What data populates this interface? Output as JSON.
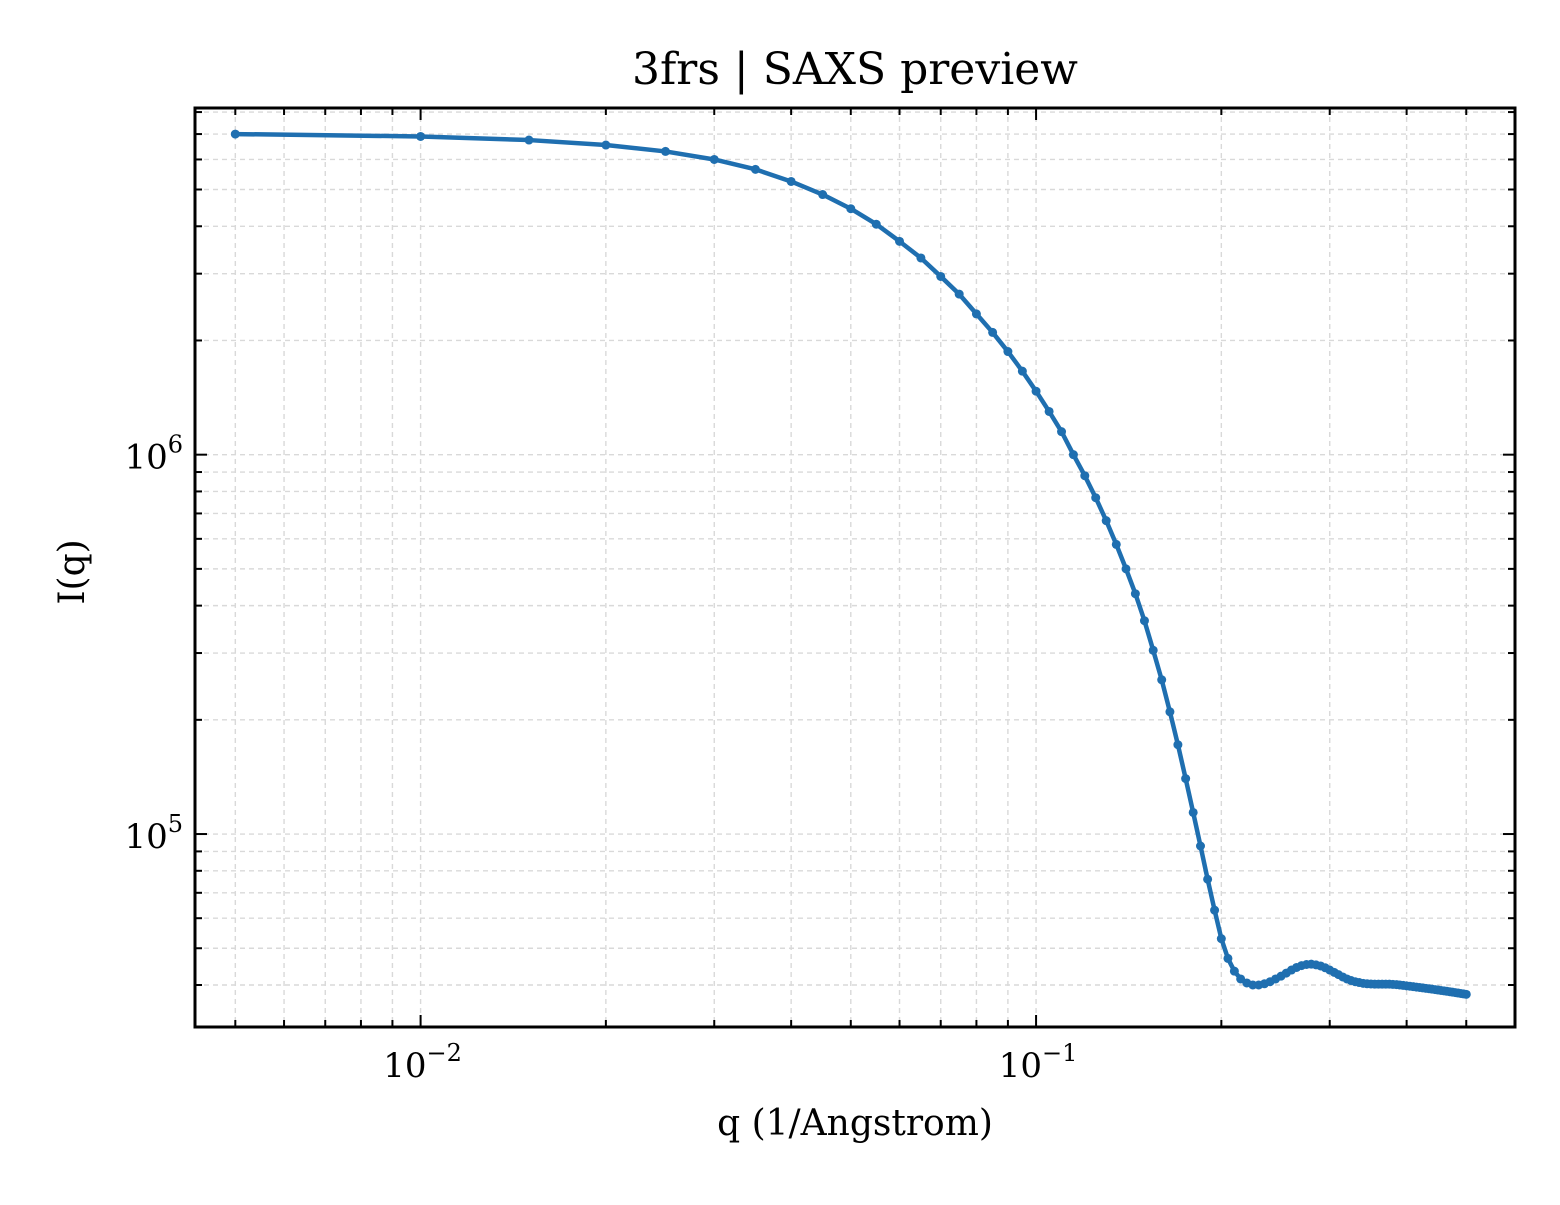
{
  "chart_data": {
    "type": "line",
    "title": "3frs | SAXS preview",
    "xlabel": "q (1/Angstrom)",
    "ylabel": "I(q)",
    "x_scale": "log",
    "y_scale": "log",
    "xlim": [
      0.0043,
      0.6
    ],
    "ylim": [
      31000,
      8200000
    ],
    "grid": true,
    "x_ticks": [
      {
        "base": "10",
        "exp": "−2",
        "value": 0.01
      },
      {
        "base": "10",
        "exp": "−1",
        "value": 0.1
      }
    ],
    "y_ticks": [
      {
        "base": "10",
        "exp": "5",
        "value": 100000
      },
      {
        "base": "10",
        "exp": "6",
        "value": 1000000
      }
    ],
    "colors": {
      "line": "#1f6fb0",
      "grid": "#d9d9d9",
      "axes": "#000000"
    },
    "series": [
      {
        "x": [
          0.005,
          0.01,
          0.015,
          0.02,
          0.025,
          0.03,
          0.035,
          0.04,
          0.045,
          0.05,
          0.055,
          0.06,
          0.065,
          0.07,
          0.075,
          0.08,
          0.085,
          0.09,
          0.095,
          0.1,
          0.105,
          0.11,
          0.115,
          0.12,
          0.125,
          0.13,
          0.135,
          0.14,
          0.145,
          0.15,
          0.155,
          0.16,
          0.165,
          0.17,
          0.175,
          0.18,
          0.185,
          0.19,
          0.195,
          0.2,
          0.205,
          0.21,
          0.215,
          0.22,
          0.225,
          0.23,
          0.235,
          0.24,
          0.245,
          0.25,
          0.255,
          0.26,
          0.265,
          0.27,
          0.275,
          0.28,
          0.285,
          0.29,
          0.295,
          0.3,
          0.305,
          0.31,
          0.315,
          0.32,
          0.325,
          0.33,
          0.335,
          0.34,
          0.345,
          0.35,
          0.355,
          0.36,
          0.365,
          0.37,
          0.375,
          0.38,
          0.385,
          0.39,
          0.395,
          0.4,
          0.405,
          0.41,
          0.415,
          0.42,
          0.425,
          0.43,
          0.435,
          0.44,
          0.445,
          0.45,
          0.455,
          0.46,
          0.465,
          0.47,
          0.475,
          0.48,
          0.485,
          0.49,
          0.495,
          0.5
        ],
        "y": [
          7000000,
          6900000,
          6750000,
          6550000,
          6300000,
          6000000,
          5650000,
          5250000,
          4850000,
          4450000,
          4050000,
          3650000,
          3300000,
          2950000,
          2650000,
          2350000,
          2100000,
          1870000,
          1660000,
          1470000,
          1300000,
          1150000,
          1000000,
          880000,
          770000,
          670000,
          580000,
          500000,
          430000,
          365000,
          305000,
          255000,
          210000,
          172000,
          140000,
          114000,
          93000,
          76000,
          63000,
          53000,
          47000,
          43500,
          41500,
          40500,
          40000,
          40000,
          40300,
          40800,
          41500,
          42200,
          43000,
          43800,
          44500,
          45000,
          45300,
          45400,
          45200,
          44900,
          44400,
          43800,
          43200,
          42600,
          42000,
          41500,
          41100,
          40800,
          40600,
          40400,
          40300,
          40250,
          40200,
          40200,
          40200,
          40200,
          40200,
          40150,
          40100,
          40000,
          39900,
          39800,
          39700,
          39600,
          39500,
          39400,
          39300,
          39200,
          39100,
          39000,
          38900,
          38800,
          38700,
          38600,
          38500,
          38400,
          38300,
          38200,
          38100,
          38000,
          37900,
          37800
        ]
      }
    ]
  }
}
